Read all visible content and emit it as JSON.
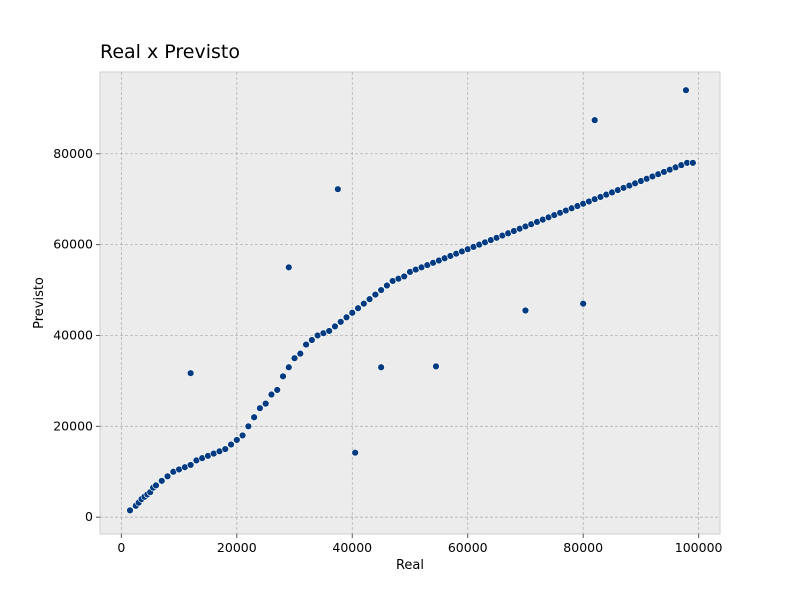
{
  "chart_data": {
    "type": "scatter",
    "title": "Real x Previsto",
    "xlabel": "Real",
    "ylabel": "Previsto",
    "xlim": [
      -3700,
      103700
    ],
    "ylim": [
      -3700,
      98000
    ],
    "x_ticks": [
      0,
      20000,
      40000,
      60000,
      80000,
      100000
    ],
    "x_tick_labels": [
      "0",
      "20000",
      "40000",
      "60000",
      "80000",
      "100000"
    ],
    "y_ticks": [
      0,
      20000,
      40000,
      60000,
      80000
    ],
    "y_tick_labels": [
      "0",
      "20000",
      "40000",
      "60000",
      "80000"
    ],
    "grid": true,
    "point_color": "#003a80",
    "background_color": "#ececec",
    "series": [
      {
        "x": [
          1500,
          2500,
          3000,
          3500,
          4000,
          4500,
          5000,
          5500,
          6000,
          7000,
          8000,
          9000,
          10000,
          11000,
          12000,
          13000,
          14000,
          15000,
          16000,
          17000,
          18000,
          19000,
          20000,
          21000,
          22000,
          23000,
          24000,
          25000,
          26000,
          27000,
          28000,
          29000,
          30000,
          31000,
          32000,
          33000,
          34000,
          35000,
          36000,
          37000,
          38000,
          39000,
          40000,
          41000,
          42000,
          43000,
          44000,
          45000,
          46000,
          47000,
          48000,
          49000,
          50000,
          51000,
          52000,
          53000,
          54000,
          55000,
          56000,
          57000,
          58000,
          59000,
          60000,
          61000,
          62000,
          63000,
          64000,
          65000,
          66000,
          67000,
          68000,
          69000,
          70000,
          71000,
          72000,
          73000,
          74000,
          75000,
          76000,
          77000,
          78000,
          79000,
          80000,
          81000,
          82000,
          83000,
          84000,
          85000,
          86000,
          87000,
          88000,
          89000,
          90000,
          91000,
          92000,
          93000,
          94000,
          95000,
          96000,
          97000,
          98000,
          99000,
          12000,
          37500,
          40500,
          82000,
          97800,
          29000,
          45000,
          54500,
          70000,
          80000
        ],
        "y": [
          1500,
          2500,
          3200,
          4000,
          4500,
          5000,
          5500,
          6500,
          7000,
          8000,
          9000,
          10000,
          10500,
          11000,
          11500,
          12500,
          13000,
          13500,
          14000,
          14500,
          15000,
          16000,
          17000,
          18000,
          20000,
          22000,
          24000,
          25000,
          27000,
          28000,
          31000,
          33000,
          35000,
          36000,
          38000,
          39000,
          40000,
          40500,
          41000,
          42000,
          43000,
          44000,
          45000,
          46000,
          47000,
          48000,
          49000,
          50000,
          51000,
          52000,
          52500,
          53000,
          54000,
          54500,
          55000,
          55500,
          56000,
          56500,
          57000,
          57500,
          58000,
          58500,
          59000,
          59500,
          60000,
          60500,
          61000,
          61500,
          62000,
          62500,
          63000,
          63500,
          64000,
          64500,
          65000,
          65500,
          66000,
          66500,
          67000,
          67500,
          68000,
          68500,
          69000,
          69500,
          70000,
          70500,
          71000,
          71500,
          72000,
          72500,
          73000,
          73500,
          74000,
          74500,
          75000,
          75500,
          76000,
          76500,
          77000,
          77500,
          78000,
          78000,
          31700,
          72200,
          14200,
          87400,
          94000,
          55000,
          33000,
          33200,
          45500,
          47000
        ]
      }
    ]
  }
}
